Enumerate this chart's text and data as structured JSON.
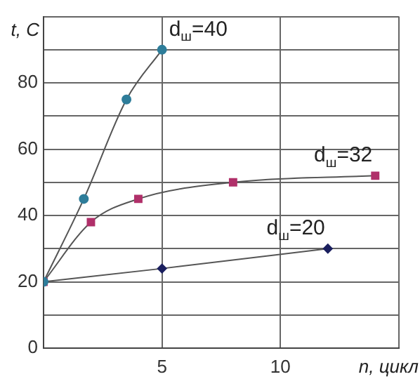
{
  "chart_data": {
    "type": "line",
    "xlabel": "n, цикл",
    "ylabel": "t, C",
    "series": [
      {
        "name": "d$_{ш}$=40",
        "color": "#2e7d9a",
        "marker": "circle",
        "x": [
          0,
          1.7,
          3.5,
          5
        ],
        "values": [
          20,
          45,
          75,
          90
        ]
      },
      {
        "name": "d$_{ш}$=32",
        "color": "#b0306a",
        "marker": "square",
        "x": [
          0,
          2,
          4,
          8,
          14
        ],
        "values": [
          20,
          38,
          45,
          50,
          52
        ]
      },
      {
        "name": "d$_{ш}$=20",
        "color": "#1a1f5e",
        "marker": "diamond",
        "x": [
          0,
          5,
          12
        ],
        "values": [
          20,
          24,
          30
        ]
      }
    ],
    "xlim": [
      0,
      15
    ],
    "xticks": [
      5,
      10,
      {
        "value": 15,
        "label": null
      }
    ],
    "ylim": [
      0,
      100
    ],
    "yticks": [
      0,
      {
        "value": 10,
        "label": null
      },
      20,
      {
        "value": 30,
        "label": null
      },
      40,
      {
        "value": 50,
        "label": null
      },
      60,
      {
        "value": 70,
        "label": null
      },
      80,
      {
        "value": 90,
        "label": null
      },
      {
        "value": 100,
        "label": null
      }
    ],
    "grid": true,
    "legend": false,
    "line_style": "solid"
  }
}
